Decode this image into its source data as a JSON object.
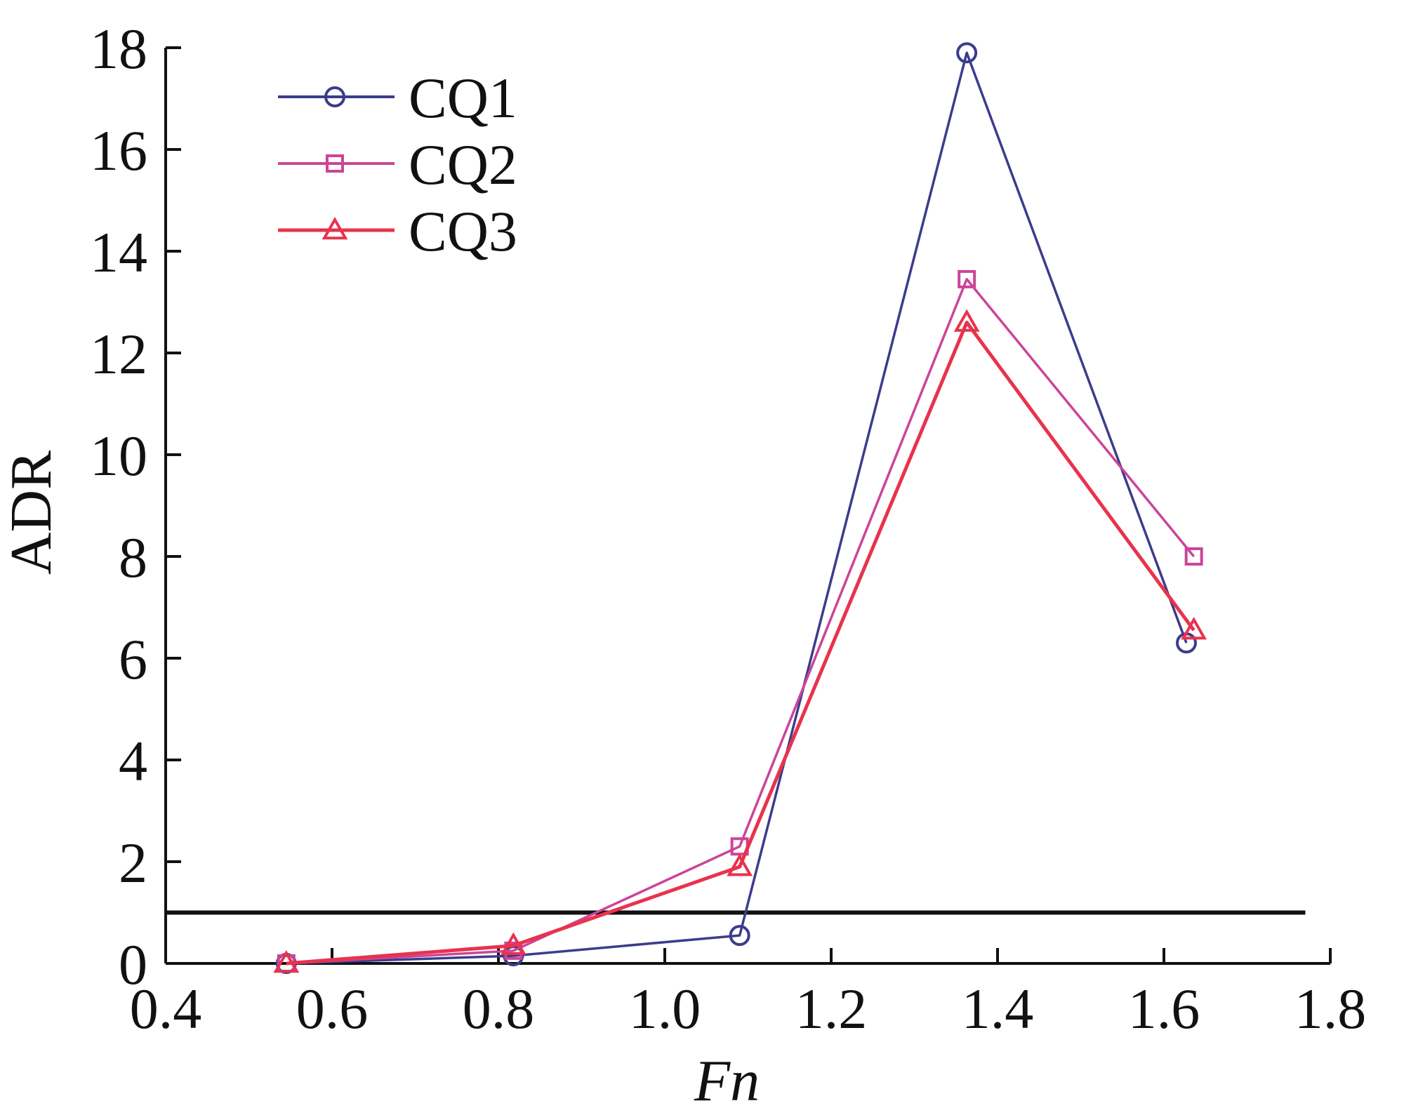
{
  "chart_data": {
    "type": "line",
    "title": "",
    "xlabel": "Fn",
    "ylabel": "ADR",
    "xlim": [
      0.4,
      1.8
    ],
    "ylim": [
      0,
      18
    ],
    "xticks": [
      "0.4",
      "0.6",
      "0.8",
      "1.0",
      "1.2",
      "1.4",
      "1.6",
      "1.8"
    ],
    "yticks": [
      "0",
      "2",
      "4",
      "6",
      "8",
      "10",
      "12",
      "14",
      "16",
      "18"
    ],
    "grid": false,
    "legend_position": "top-left",
    "reference_line": {
      "y": 1.0,
      "x_range": [
        0.4,
        1.77
      ]
    },
    "series": [
      {
        "name": "CQ1",
        "color": "#3c3c8c",
        "marker": "circle",
        "x": [
          0.545,
          0.818,
          1.09,
          1.363,
          1.627
        ],
        "y": [
          0.0,
          0.15,
          0.55,
          17.9,
          6.3
        ]
      },
      {
        "name": "CQ2",
        "color": "#cc4499",
        "marker": "square",
        "x": [
          0.545,
          0.818,
          1.09,
          1.363,
          1.636
        ],
        "y": [
          0.0,
          0.25,
          2.3,
          13.45,
          8.0
        ]
      },
      {
        "name": "CQ3",
        "color": "#e8334d",
        "marker": "triangle",
        "x": [
          0.545,
          0.818,
          1.09,
          1.363,
          1.636
        ],
        "y": [
          0.0,
          0.35,
          1.9,
          12.6,
          6.55
        ]
      }
    ]
  }
}
